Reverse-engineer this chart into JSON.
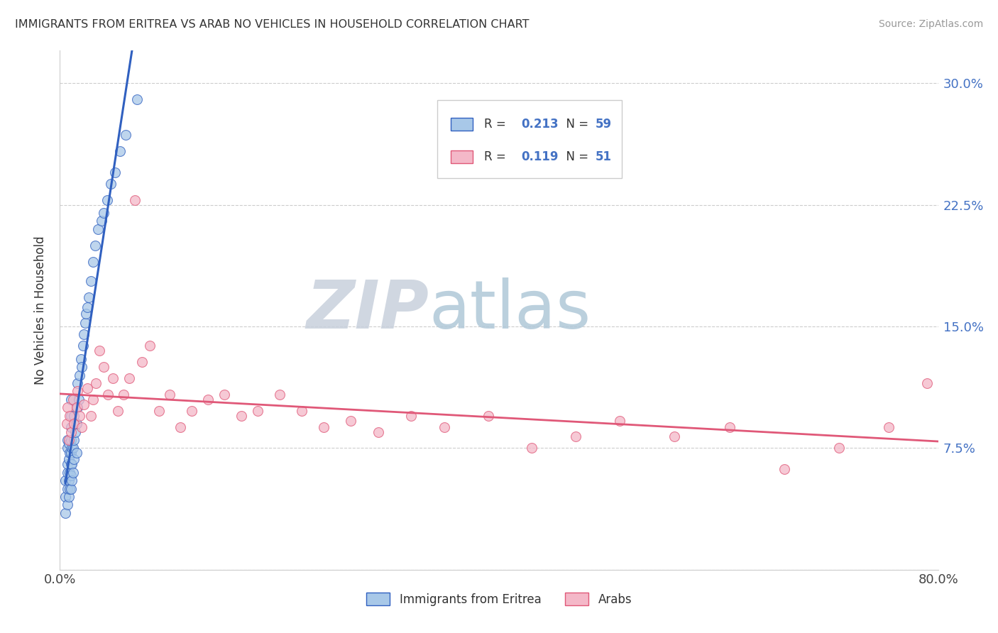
{
  "title": "IMMIGRANTS FROM ERITREA VS ARAB NO VEHICLES IN HOUSEHOLD CORRELATION CHART",
  "source": "Source: ZipAtlas.com",
  "ylabel": "No Vehicles in Household",
  "xlim": [
    0.0,
    0.8
  ],
  "ylim": [
    0.0,
    0.32
  ],
  "yticks": [
    0.0,
    0.075,
    0.15,
    0.225,
    0.3
  ],
  "ytick_labels": [
    "",
    "7.5%",
    "15.0%",
    "22.5%",
    "30.0%"
  ],
  "color_eritrea": "#a8c8e8",
  "color_arab": "#f4b8c8",
  "line_color_eritrea": "#3060c0",
  "line_color_arab": "#e05878",
  "dash_color_eritrea": "#8899cc",
  "background_color": "#ffffff",
  "watermark_zip": "ZIP",
  "watermark_atlas": "atlas",
  "watermark_color_zip": "#c0cce0",
  "watermark_color_atlas": "#b0c8d0",
  "eritrea_x": [
    0.005,
    0.005,
    0.005,
    0.007,
    0.007,
    0.007,
    0.007,
    0.007,
    0.007,
    0.008,
    0.008,
    0.008,
    0.008,
    0.009,
    0.009,
    0.009,
    0.01,
    0.01,
    0.01,
    0.01,
    0.01,
    0.01,
    0.01,
    0.01,
    0.011,
    0.011,
    0.011,
    0.012,
    0.012,
    0.013,
    0.013,
    0.013,
    0.014,
    0.015,
    0.015,
    0.016,
    0.016,
    0.017,
    0.018,
    0.019,
    0.02,
    0.021,
    0.022,
    0.023,
    0.024,
    0.025,
    0.026,
    0.028,
    0.03,
    0.032,
    0.035,
    0.038,
    0.04,
    0.043,
    0.046,
    0.05,
    0.055,
    0.06,
    0.07
  ],
  "eritrea_y": [
    0.035,
    0.045,
    0.055,
    0.04,
    0.05,
    0.06,
    0.065,
    0.075,
    0.08,
    0.045,
    0.055,
    0.068,
    0.078,
    0.05,
    0.06,
    0.072,
    0.05,
    0.058,
    0.065,
    0.072,
    0.08,
    0.088,
    0.095,
    0.105,
    0.055,
    0.065,
    0.075,
    0.06,
    0.075,
    0.068,
    0.08,
    0.095,
    0.085,
    0.072,
    0.09,
    0.1,
    0.115,
    0.105,
    0.12,
    0.13,
    0.125,
    0.138,
    0.145,
    0.152,
    0.158,
    0.162,
    0.168,
    0.178,
    0.19,
    0.2,
    0.21,
    0.215,
    0.22,
    0.228,
    0.238,
    0.245,
    0.258,
    0.268,
    0.29
  ],
  "arab_x": [
    0.006,
    0.007,
    0.008,
    0.009,
    0.01,
    0.012,
    0.013,
    0.015,
    0.016,
    0.018,
    0.02,
    0.022,
    0.025,
    0.028,
    0.03,
    0.033,
    0.036,
    0.04,
    0.044,
    0.048,
    0.053,
    0.058,
    0.063,
    0.068,
    0.075,
    0.082,
    0.09,
    0.1,
    0.11,
    0.12,
    0.135,
    0.15,
    0.165,
    0.18,
    0.2,
    0.22,
    0.24,
    0.265,
    0.29,
    0.32,
    0.35,
    0.39,
    0.43,
    0.47,
    0.51,
    0.56,
    0.61,
    0.66,
    0.71,
    0.755,
    0.79
  ],
  "arab_y": [
    0.09,
    0.1,
    0.08,
    0.095,
    0.085,
    0.105,
    0.09,
    0.1,
    0.11,
    0.095,
    0.088,
    0.102,
    0.112,
    0.095,
    0.105,
    0.115,
    0.135,
    0.125,
    0.108,
    0.118,
    0.098,
    0.108,
    0.118,
    0.228,
    0.128,
    0.138,
    0.098,
    0.108,
    0.088,
    0.098,
    0.105,
    0.108,
    0.095,
    0.098,
    0.108,
    0.098,
    0.088,
    0.092,
    0.085,
    0.095,
    0.088,
    0.095,
    0.075,
    0.082,
    0.092,
    0.082,
    0.088,
    0.062,
    0.075,
    0.088,
    0.115
  ]
}
